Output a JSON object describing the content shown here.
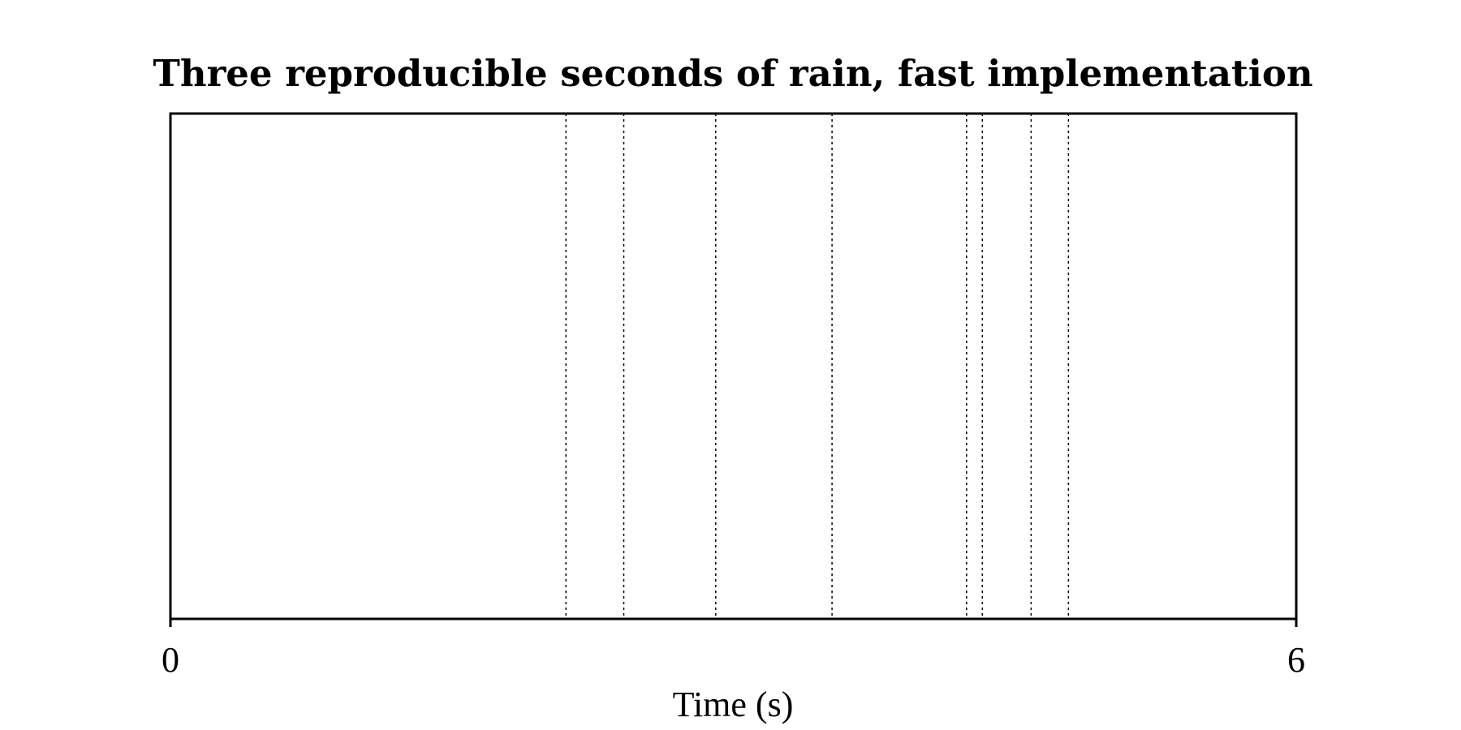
{
  "chart_data": {
    "type": "event_raster",
    "title": "Three reproducible seconds of rain, fast implementation",
    "xlabel": "Time (s)",
    "ylabel": "",
    "xlim": [
      0,
      6
    ],
    "xticks": [
      {
        "value": 0,
        "label": "0"
      },
      {
        "value": 6,
        "label": "6"
      }
    ],
    "events": [
      2.108,
      2.416,
      2.906,
      3.526,
      4.243,
      4.327,
      4.587,
      4.786
    ],
    "event_line_style": "dotted",
    "grid": false,
    "legend": "none"
  }
}
